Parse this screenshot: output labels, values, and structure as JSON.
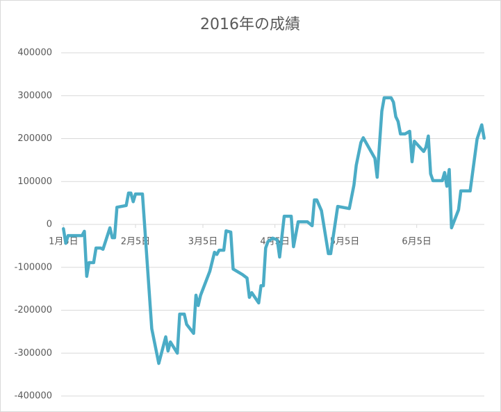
{
  "chart_data": {
    "type": "line",
    "title": "2016年の成績",
    "x": [
      5,
      6,
      7,
      13,
      14,
      15,
      16,
      18,
      19,
      21,
      22,
      25,
      26,
      27,
      28,
      32,
      33,
      34,
      35,
      36,
      39,
      43,
      46,
      49,
      50,
      51,
      54,
      55,
      57,
      58,
      61,
      62,
      63,
      64,
      68,
      70,
      71,
      72,
      74,
      75,
      77,
      78,
      82,
      84,
      85,
      86,
      89,
      90,
      91,
      92,
      93,
      95,
      97,
      98,
      100,
      103,
      104,
      106,
      110,
      112,
      113,
      114,
      116,
      119,
      120,
      123,
      128,
      130,
      131,
      133,
      134,
      136,
      139,
      140,
      142,
      143,
      146,
      147,
      148,
      149,
      150,
      152,
      154,
      155,
      156,
      160,
      161,
      162,
      163,
      164,
      168,
      169,
      170,
      171,
      172,
      175,
      176,
      180,
      183,
      185,
      186
    ],
    "series": [
      {
        "name": "成績",
        "color": "#4bacc6",
        "values": [
          -10000,
          -44000,
          -26000,
          -26000,
          -16000,
          -121000,
          -89000,
          -89000,
          -55000,
          -55000,
          -58000,
          -8000,
          -31000,
          -31000,
          40000,
          44000,
          73000,
          73000,
          53000,
          71000,
          71000,
          -243000,
          -324000,
          -262000,
          -295000,
          -274000,
          -300000,
          -209000,
          -209000,
          -233000,
          -254000,
          -165000,
          -189000,
          -165000,
          -109000,
          -65000,
          -70000,
          -60000,
          -60000,
          -15000,
          -18000,
          -104000,
          -117000,
          -125000,
          -170000,
          -159000,
          -183000,
          -143000,
          -143000,
          -55000,
          -40000,
          -32000,
          -36000,
          -76000,
          19000,
          19000,
          -52000,
          6000,
          6000,
          -3000,
          57000,
          57000,
          32000,
          -68000,
          -68000,
          42000,
          37000,
          92000,
          138000,
          191000,
          202000,
          183000,
          154000,
          110000,
          264000,
          295000,
          295000,
          285000,
          251000,
          240000,
          211000,
          211000,
          217000,
          146000,
          194000,
          170000,
          180000,
          206000,
          118000,
          102000,
          102000,
          121000,
          89000,
          128000,
          -8000,
          34000,
          78000,
          78000,
          199000,
          232000,
          201000
        ]
      }
    ],
    "xlim": [
      4,
      187
    ],
    "xticks": [
      {
        "value": 5,
        "label": "1月5日"
      },
      {
        "value": 36,
        "label": "2月5日"
      },
      {
        "value": 65,
        "label": "3月5日"
      },
      {
        "value": 96,
        "label": "4月5日"
      },
      {
        "value": 126,
        "label": "5月5日"
      },
      {
        "value": 157,
        "label": "6月5日"
      }
    ],
    "ylim": [
      -400000,
      400000
    ],
    "yticks": [
      -400000,
      -300000,
      -200000,
      -100000,
      0,
      100000,
      200000,
      300000,
      400000
    ],
    "grid": true
  }
}
